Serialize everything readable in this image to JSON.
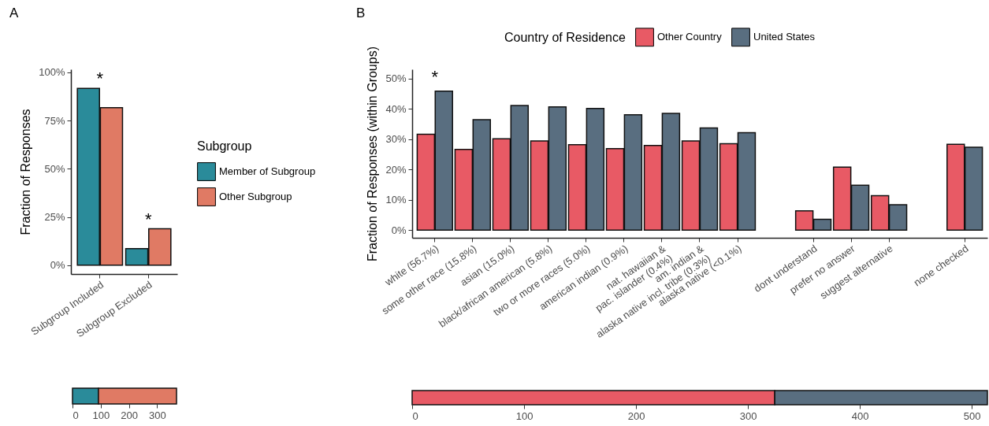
{
  "chart_data": [
    {
      "type": "bar",
      "title": "A",
      "ylabel": "Fraction of Responses",
      "legend_title": "Subgroup",
      "legend": "right",
      "categories": [
        "Subgroup Included",
        "Subgroup Excluded"
      ],
      "series": [
        {
          "name": "Member of Subgroup",
          "color": "#2a8b9a",
          "values": [
            91.7,
            8.6
          ]
        },
        {
          "name": "Other Subgroup",
          "color": "#e07a64",
          "values": [
            81.7,
            18.9
          ]
        }
      ],
      "ylim": [
        -4.6,
        101.6
      ],
      "yticks": [
        {
          "value": 0,
          "label": "0%"
        },
        {
          "value": 25,
          "label": "25%"
        },
        {
          "value": 50,
          "label": "50%"
        },
        {
          "value": 75,
          "label": "75%"
        },
        {
          "value": 100,
          "label": "100%"
        }
      ],
      "annotations": [
        "*",
        "*"
      ]
    },
    {
      "type": "bar",
      "orientation": "horizontal",
      "stacked": true,
      "categories": [
        null
      ],
      "series": [
        {
          "color": "#2a8b9a",
          "values": [
            92
          ]
        },
        {
          "color": "#e07a64",
          "values": [
            277
          ]
        }
      ],
      "xlim": [
        0,
        369
      ],
      "xticks": [
        0,
        100,
        200,
        300
      ]
    },
    {
      "type": "bar",
      "title": "B",
      "ylabel": "Fraction of Responses (within Groups)",
      "legend_title": "Country of Residence",
      "legend": "top",
      "categories": [
        "white (56.7%)",
        "some other race (15.8%)",
        "asian (15.0%)",
        "black/african american (5.8%)",
        "two or more races (5.0%)",
        "american indian (0.9%)",
        "nat. hawaiian &\npac. islander (0.4%)",
        "am. indian &\nalaska native incl. tribe (0.3%)",
        "alaska native (<0.1%)",
        "dont understand",
        "prefer no answer",
        "suggest alternative",
        "none checked"
      ],
      "series": [
        {
          "name": "Other Country",
          "color": "#e85a65",
          "values": [
            31.6,
            26.6,
            30.1,
            29.4,
            28.2,
            26.9,
            27.9,
            29.4,
            28.5,
            6.4,
            20.8,
            11.4,
            28.3
          ]
        },
        {
          "name": "United States",
          "color": "#596e80",
          "values": [
            45.8,
            36.4,
            41.1,
            40.6,
            40.1,
            38.0,
            38.5,
            33.7,
            32.1,
            3.6,
            14.8,
            8.4,
            27.3
          ]
        }
      ],
      "ylim": [
        -2.5,
        53
      ],
      "yticks": [
        {
          "value": 0,
          "label": "0%"
        },
        {
          "value": 10,
          "label": "10%"
        },
        {
          "value": 20,
          "label": "20%"
        },
        {
          "value": 30,
          "label": "30%"
        },
        {
          "value": 40,
          "label": "40%"
        },
        {
          "value": 50,
          "label": "50%"
        }
      ],
      "annotations": [
        "*"
      ]
    },
    {
      "type": "bar",
      "orientation": "horizontal",
      "stacked": true,
      "categories": [
        null
      ],
      "series": [
        {
          "color": "#e85a65",
          "values": [
            324
          ]
        },
        {
          "color": "#596e80",
          "values": [
            190
          ]
        }
      ],
      "xlim": [
        0,
        514
      ],
      "xticks": [
        0,
        100,
        200,
        300,
        400,
        500
      ]
    }
  ]
}
